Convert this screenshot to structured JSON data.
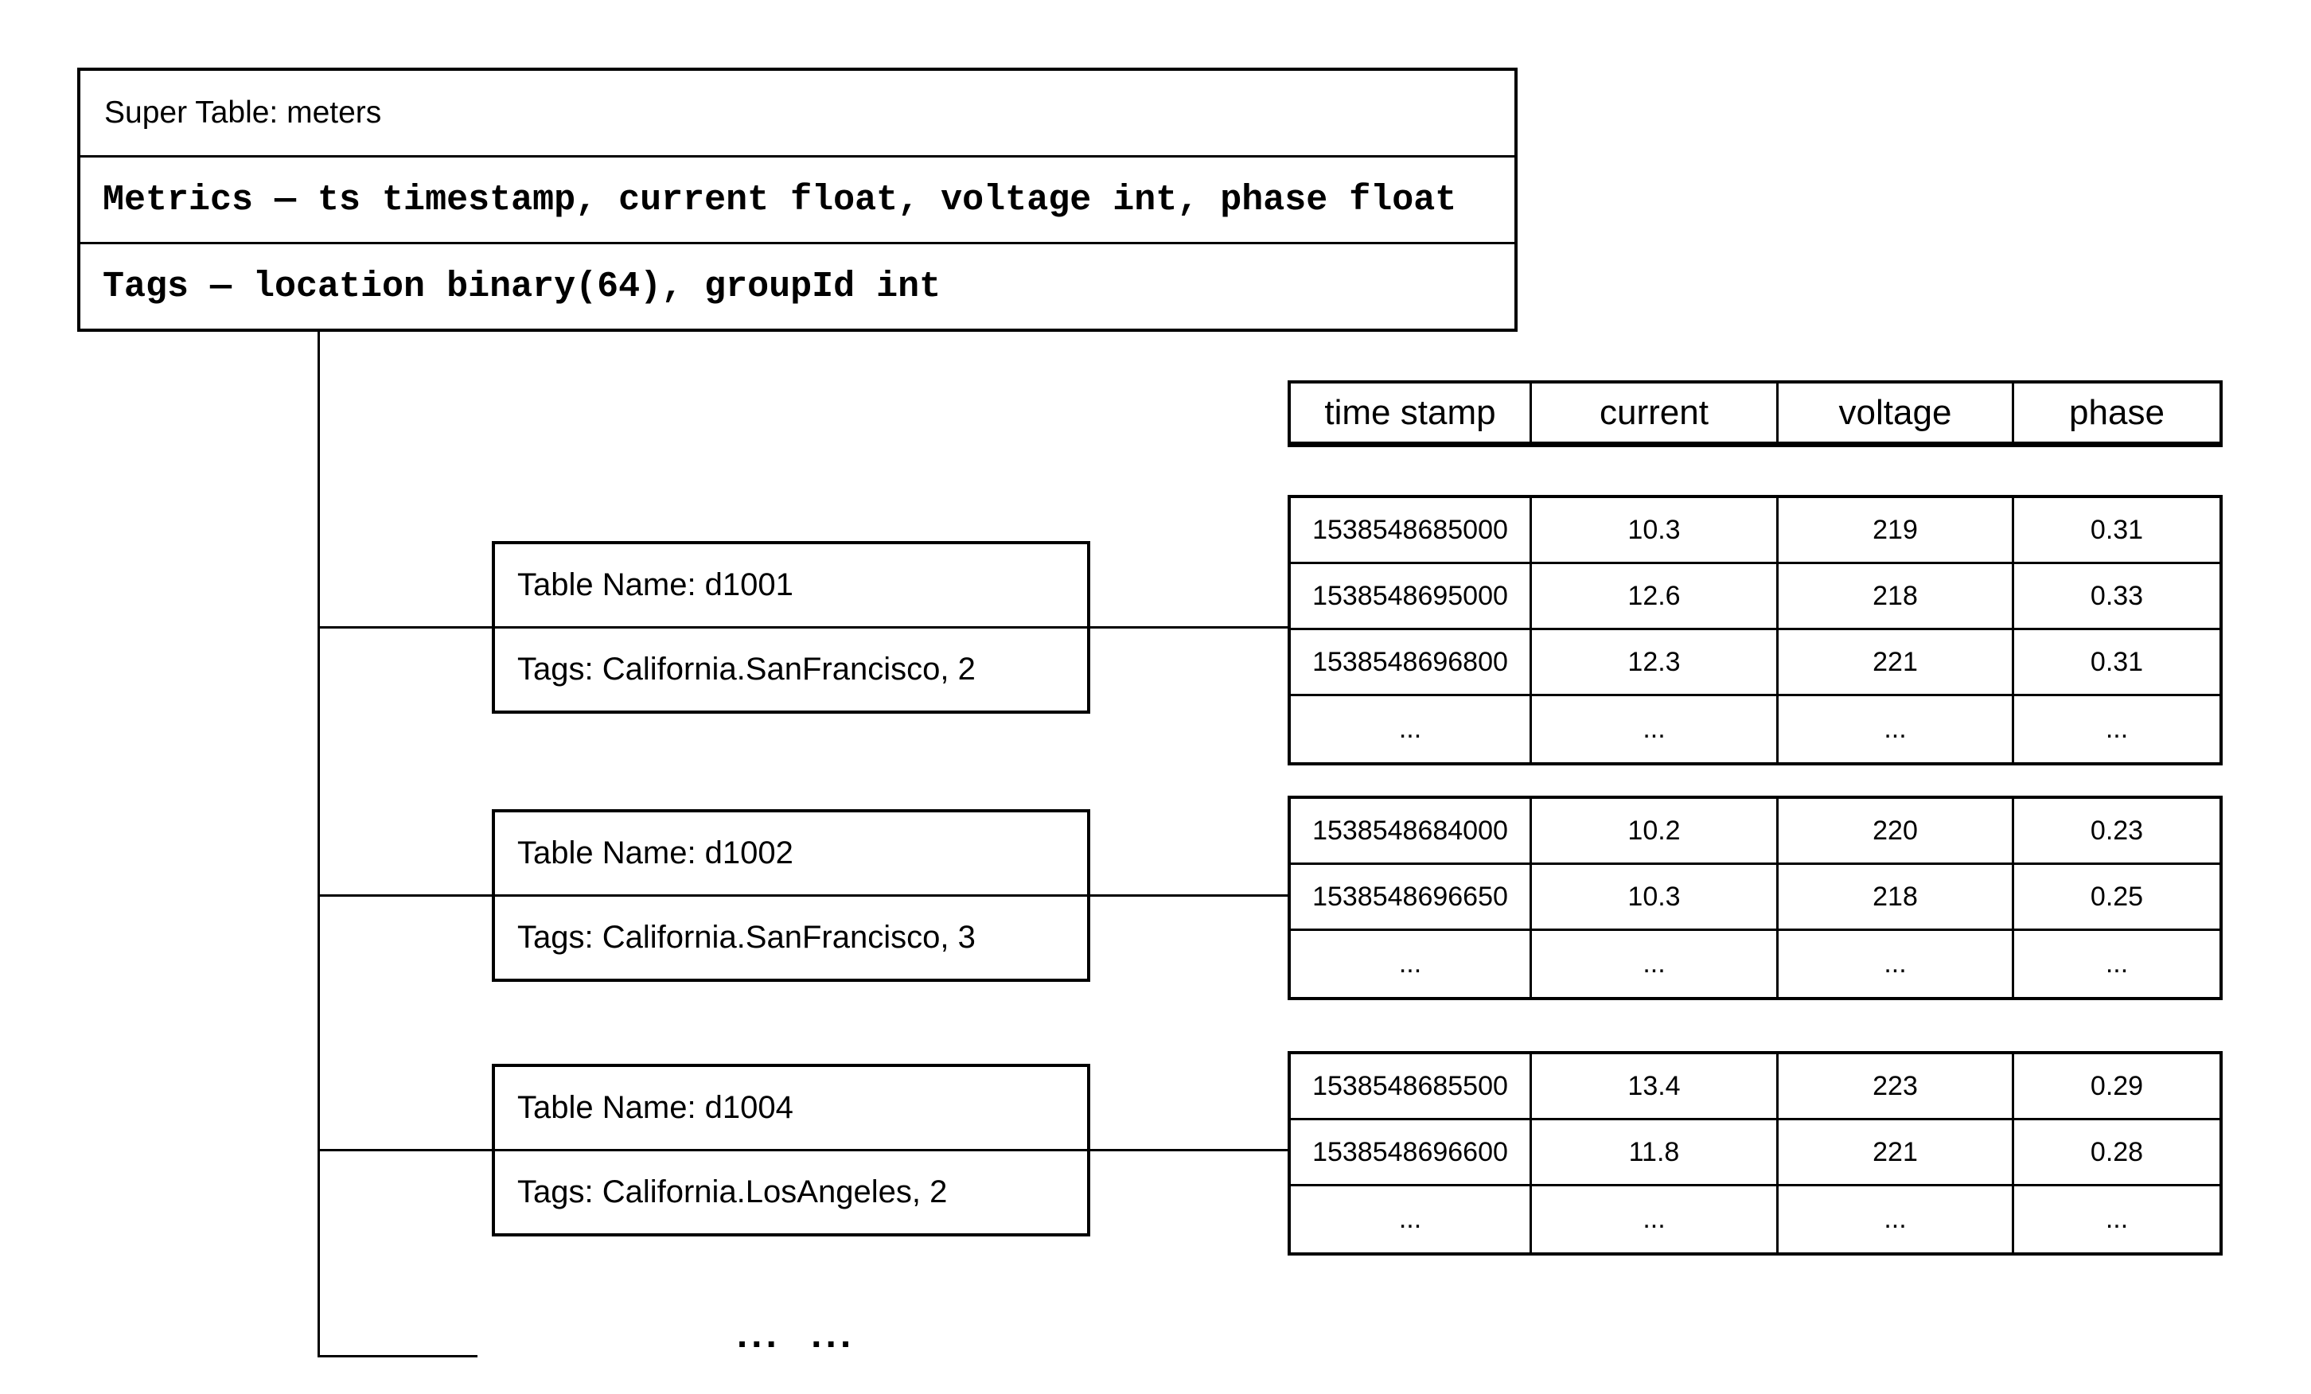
{
  "super_table": {
    "title": "Super Table: meters",
    "metrics": "Metrics — ts timestamp, current float, voltage int, phase float",
    "tags": "Tags — location binary(64), groupId int"
  },
  "columns": [
    "time stamp",
    "current",
    "voltage",
    "phase"
  ],
  "devices": [
    {
      "name": "Table Name: d1001",
      "tags": "Tags: California.SanFrancisco, 2",
      "rows": [
        [
          "1538548685000",
          "10.3",
          "219",
          "0.31"
        ],
        [
          "1538548695000",
          "12.6",
          "218",
          "0.33"
        ],
        [
          "1538548696800",
          "12.3",
          "221",
          "0.31"
        ],
        [
          "...",
          "...",
          "...",
          "..."
        ]
      ]
    },
    {
      "name": "Table Name: d1002",
      "tags": "Tags: California.SanFrancisco, 3",
      "rows": [
        [
          "1538548684000",
          "10.2",
          "220",
          "0.23"
        ],
        [
          "1538548696650",
          "10.3",
          "218",
          "0.25"
        ],
        [
          "...",
          "...",
          "...",
          "..."
        ]
      ]
    },
    {
      "name": "Table Name: d1004",
      "tags": "Tags: California.LosAngeles, 2",
      "rows": [
        [
          "1538548685500",
          "13.4",
          "223",
          "0.29"
        ],
        [
          "1538548696600",
          "11.8",
          "221",
          "0.28"
        ],
        [
          "...",
          "...",
          "...",
          "..."
        ]
      ]
    }
  ],
  "more_indicator": "... ...",
  "colors": {
    "line": "#000000",
    "background": "#ffffff"
  }
}
